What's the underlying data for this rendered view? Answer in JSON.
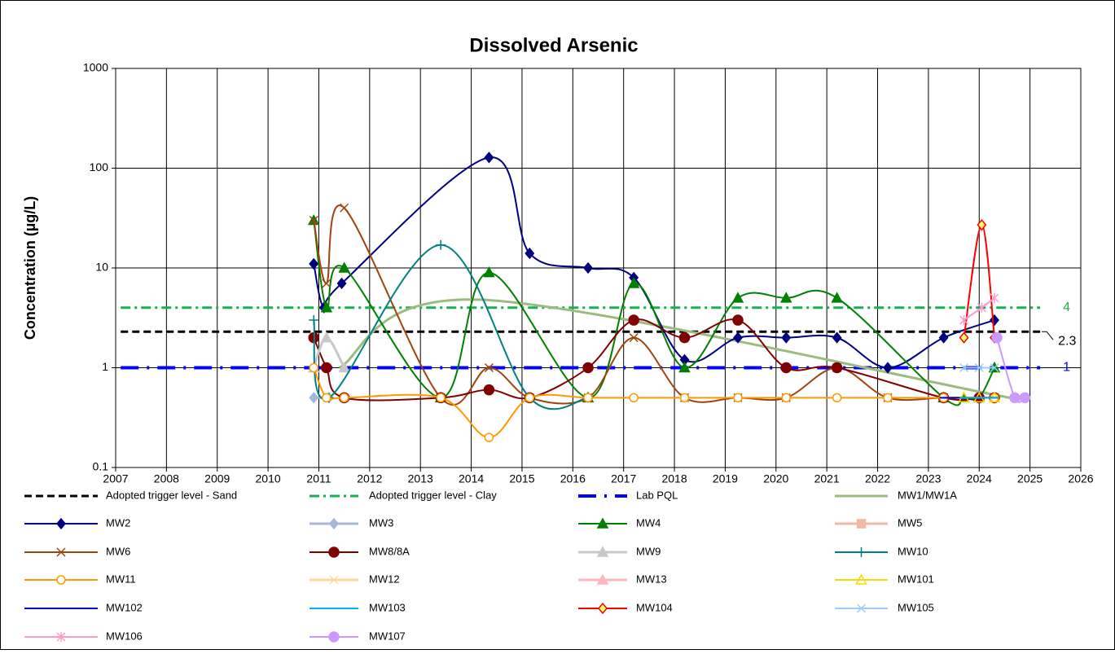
{
  "chart_data": {
    "type": "line",
    "title": "Dissolved Arsenic",
    "y_label": "Concentration (µg/L)",
    "xlim": [
      2007,
      2026
    ],
    "xticks": [
      2007,
      2008,
      2009,
      2010,
      2011,
      2012,
      2013,
      2014,
      2015,
      2016,
      2017,
      2018,
      2019,
      2020,
      2021,
      2022,
      2023,
      2024,
      2025,
      2026
    ],
    "ylim": [
      0.1,
      1000
    ],
    "yticks": [
      0.1,
      1,
      10,
      100,
      1000
    ],
    "log_y": true,
    "grid": true,
    "smooth": true,
    "legend": "bottom",
    "series": [
      {
        "name": "Adopted trigger level - Sand",
        "color": "#000000",
        "width": 3,
        "dash": "9,5",
        "marker": "none",
        "smooth": false,
        "end_label": true,
        "x": [
          2007.1,
          2025.2
        ],
        "values": [
          2.3,
          2.3
        ]
      },
      {
        "name": "Adopted trigger level - Clay",
        "color": "#1aaf54",
        "width": 3,
        "dash": "12,5,3,5",
        "marker": "none",
        "smooth": false,
        "end_label": true,
        "x": [
          2007.1,
          2025.2
        ],
        "values": [
          4,
          4
        ]
      },
      {
        "name": "Lab PQL",
        "color": "#0000ff",
        "width": 4,
        "dash": "22,10,3,10",
        "marker": "none",
        "smooth": false,
        "end_label": true,
        "x": [
          2007.1,
          2025.2
        ],
        "values": [
          1,
          1
        ]
      },
      {
        "name": "MW1/MW1A",
        "color": "#9bbb7f",
        "width": 3,
        "marker": "none",
        "x": [
          2011.4,
          2014.2,
          2024.6
        ],
        "values": [
          1,
          4.8,
          0.5
        ]
      },
      {
        "name": "MW2",
        "color": "#000080",
        "width": 2,
        "marker": "diamond",
        "x": [
          2010.9,
          2011.1,
          2011.45,
          2014.35,
          2015.15,
          2016.3,
          2017.2,
          2018.2,
          2019.25,
          2020.2,
          2021.2,
          2022.2,
          2023.3,
          2024.3
        ],
        "values": [
          11,
          4,
          7,
          128,
          14,
          10,
          8,
          1.2,
          2,
          2,
          2,
          1,
          2,
          3
        ]
      },
      {
        "name": "MW3",
        "color": "#a6b8d8",
        "width": 3,
        "marker": "diamond",
        "x": [
          2010.9,
          2011.2
        ],
        "values": [
          0.5,
          0.5
        ]
      },
      {
        "name": "MW4",
        "color": "#008000",
        "width": 2,
        "marker": "triangle",
        "x": [
          2010.9,
          2011.15,
          2011.5,
          2013.4,
          2014.35,
          2016.3,
          2017.2,
          2018.2,
          2019.25,
          2020.2,
          2021.2,
          2023.3,
          2023.7,
          2024.0,
          2024.3
        ],
        "values": [
          30,
          4,
          10,
          0.5,
          9,
          0.5,
          7,
          1,
          5,
          5,
          5,
          0.5,
          0.5,
          0.5,
          1
        ]
      },
      {
        "name": "MW5",
        "color": "#f4b8a0",
        "width": 3,
        "marker": "square",
        "x": [],
        "values": []
      },
      {
        "name": "MW6",
        "color": "#a0440e",
        "width": 2,
        "marker": "x",
        "x": [
          2010.9,
          2011.15,
          2011.5,
          2013.4,
          2014.35,
          2015.15,
          2016.3,
          2017.2,
          2018.2,
          2019.25,
          2020.2,
          2021.2,
          2022.2,
          2023.3,
          2024.3
        ],
        "values": [
          30,
          7,
          40,
          0.5,
          1,
          0.5,
          0.5,
          2,
          0.5,
          0.5,
          0.5,
          1,
          0.5,
          0.5,
          0.5
        ]
      },
      {
        "name": "MW8/8A",
        "color": "#800000",
        "width": 2,
        "marker": "circle",
        "x": [
          2010.9,
          2011.15,
          2011.5,
          2013.4,
          2014.35,
          2015.15,
          2016.3,
          2017.2,
          2018.2,
          2019.25,
          2020.2,
          2021.2,
          2023.3,
          2024.0,
          2024.3
        ],
        "values": [
          2,
          1,
          0.5,
          0.5,
          0.6,
          0.5,
          1,
          3,
          2,
          3,
          1,
          1,
          0.5,
          0.5,
          0.5
        ]
      },
      {
        "name": "MW9",
        "color": "#c8c8c8",
        "width": 3,
        "marker": "triangle",
        "x": [
          2010.9,
          2011.15,
          2011.5
        ],
        "values": [
          1,
          2,
          1
        ]
      },
      {
        "name": "MW10",
        "color": "#008080",
        "width": 2,
        "marker": "plus",
        "x": [
          2010.9,
          2011.2,
          2013.4,
          2015.15,
          2016.3
        ],
        "values": [
          3,
          0.5,
          17,
          0.5,
          0.5
        ]
      },
      {
        "name": "MW11",
        "color": "#ff9900",
        "width": 2,
        "marker": "circle",
        "marker_fill": "none",
        "x": [
          2010.9,
          2011.15,
          2011.5,
          2013.4,
          2014.35,
          2015.15,
          2016.3,
          2017.2,
          2018.2,
          2019.25,
          2020.2,
          2021.2,
          2022.2,
          2023.3,
          2024.3
        ],
        "values": [
          1,
          0.5,
          0.5,
          0.5,
          0.2,
          0.5,
          0.5,
          0.5,
          0.5,
          0.5,
          0.5,
          0.5,
          0.5,
          0.5,
          0.5
        ]
      },
      {
        "name": "MW12",
        "color": "#ffd9a0",
        "width": 3,
        "marker": "x",
        "x": [],
        "values": []
      },
      {
        "name": "MW13",
        "color": "#ffb6c1",
        "width": 3,
        "marker": "triangle",
        "x": [],
        "values": []
      },
      {
        "name": "MW101",
        "color": "#ffd700",
        "width": 2,
        "marker": "triangle",
        "marker_fill": "none",
        "x": [
          2023.7,
          2024.0,
          2024.3
        ],
        "values": [
          0.5,
          0.5,
          0.5
        ]
      },
      {
        "name": "MW102",
        "color": "#0000cc",
        "width": 2,
        "marker": "dash",
        "x": [
          2023.3,
          2024.3
        ],
        "values": [
          0.5,
          0.5
        ]
      },
      {
        "name": "MW103",
        "color": "#00b0f0",
        "width": 2,
        "marker": "dash",
        "x": [
          2023.7,
          2024.3
        ],
        "values": [
          0.5,
          0.5
        ]
      },
      {
        "name": "MW104",
        "color": "#ff0000",
        "width": 2,
        "marker": "diamond",
        "marker_fill": "#ffff66",
        "x": [
          2023.7,
          2024.05,
          2024.3
        ],
        "values": [
          2,
          27,
          2
        ]
      },
      {
        "name": "MW105",
        "color": "#99ccff",
        "width": 2,
        "marker": "x",
        "x": [
          2023.7,
          2024.0,
          2024.3
        ],
        "values": [
          1,
          1,
          1
        ]
      },
      {
        "name": "MW106",
        "color": "#ff99cc",
        "width": 2,
        "marker": "star",
        "x": [
          2023.7,
          2024.05,
          2024.3
        ],
        "values": [
          3,
          4,
          5
        ]
      },
      {
        "name": "MW107",
        "color": "#cc99ff",
        "width": 2,
        "marker": "circle",
        "x": [
          2024.35,
          2024.7,
          2024.9
        ],
        "values": [
          2,
          0.5,
          0.5
        ]
      }
    ]
  }
}
